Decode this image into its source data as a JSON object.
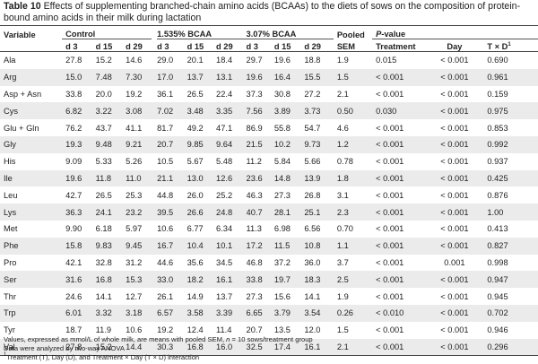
{
  "caption": {
    "label": "Table 10",
    "text": "Effects of supplementing branched-chain amino acids (BCAAs) to the diets of sows on the composition of protein-bound amino acids in their milk during lactation"
  },
  "header": {
    "variable": "Variable",
    "groups": [
      "Control",
      "1.535% BCAA",
      "3.07% BCAA"
    ],
    "pooled_line1": "Pooled",
    "pooled_line2": "SEM",
    "pvalue_p": "P",
    "pvalue_rest": "-value",
    "days": [
      "d 3",
      "d 15",
      "d 29"
    ],
    "treatment": "Treatment",
    "day": "Day",
    "interaction": "T × D",
    "interaction_sup": "1"
  },
  "rows": [
    {
      "variable": "Ala",
      "c": [
        "27.8",
        "15.2",
        "14.6"
      ],
      "b1": [
        "29.0",
        "20.1",
        "18.4"
      ],
      "b2": [
        "29.7",
        "19.6",
        "18.8"
      ],
      "sem": "1.9",
      "treatment": "0.015",
      "day": "< 0.001",
      "txd": "0.690"
    },
    {
      "variable": "Arg",
      "c": [
        "15.0",
        "7.48",
        "7.30"
      ],
      "b1": [
        "17.0",
        "13.7",
        "13.1"
      ],
      "b2": [
        "19.6",
        "16.4",
        "15.5"
      ],
      "sem": "1.5",
      "treatment": "< 0.001",
      "day": "< 0.001",
      "txd": "0.961"
    },
    {
      "variable": "Asp + Asn",
      "c": [
        "33.8",
        "20.0",
        "19.2"
      ],
      "b1": [
        "36.1",
        "26.5",
        "22.4"
      ],
      "b2": [
        "37.3",
        "30.8",
        "27.2"
      ],
      "sem": "2.1",
      "treatment": "< 0.001",
      "day": "< 0.001",
      "txd": "0.159"
    },
    {
      "variable": "Cys",
      "c": [
        "6.82",
        "3.22",
        "3.08"
      ],
      "b1": [
        "7.02",
        "3.48",
        "3.35"
      ],
      "b2": [
        "7.56",
        "3.89",
        "3.73"
      ],
      "sem": "0.50",
      "treatment": "0.030",
      "day": "< 0.001",
      "txd": "0.975"
    },
    {
      "variable": "Glu + Gln",
      "c": [
        "76.2",
        "43.7",
        "41.1"
      ],
      "b1": [
        "81.7",
        "49.2",
        "47.1"
      ],
      "b2": [
        "86.9",
        "55.8",
        "54.7"
      ],
      "sem": "4.6",
      "treatment": "< 0.001",
      "day": "< 0.001",
      "txd": "0.853"
    },
    {
      "variable": "Gly",
      "c": [
        "19.3",
        "9.48",
        "9.21"
      ],
      "b1": [
        "20.7",
        "9.85",
        "9.64"
      ],
      "b2": [
        "21.5",
        "10.2",
        "9.73"
      ],
      "sem": "1.2",
      "treatment": "< 0.001",
      "day": "< 0.001",
      "txd": "0.992"
    },
    {
      "variable": "His",
      "c": [
        "9.09",
        "5.33",
        "5.26"
      ],
      "b1": [
        "10.5",
        "5.67",
        "5.48"
      ],
      "b2": [
        "11.2",
        "5.84",
        "5.66"
      ],
      "sem": "0.78",
      "treatment": "< 0.001",
      "day": "< 0.001",
      "txd": "0.937"
    },
    {
      "variable": "Ile",
      "c": [
        "19.6",
        "11.8",
        "11.0"
      ],
      "b1": [
        "21.1",
        "13.0",
        "12.6"
      ],
      "b2": [
        "23.6",
        "14.8",
        "13.9"
      ],
      "sem": "1.8",
      "treatment": "< 0.001",
      "day": "< 0.001",
      "txd": "0.425"
    },
    {
      "variable": "Leu",
      "c": [
        "42.7",
        "26.5",
        "25.3"
      ],
      "b1": [
        "44.8",
        "26.0",
        "25.2"
      ],
      "b2": [
        "46.3",
        "27.3",
        "26.8"
      ],
      "sem": "3.1",
      "treatment": "< 0.001",
      "day": "< 0.001",
      "txd": "0.876"
    },
    {
      "variable": "Lys",
      "c": [
        "36.3",
        "24.1",
        "23.2"
      ],
      "b1": [
        "39.5",
        "26.6",
        "24.8"
      ],
      "b2": [
        "40.7",
        "28.1",
        "25.1"
      ],
      "sem": "2.3",
      "treatment": "< 0.001",
      "day": "< 0.001",
      "txd": "1.00"
    },
    {
      "variable": "Met",
      "c": [
        "9.90",
        "6.18",
        "5.97"
      ],
      "b1": [
        "10.6",
        "6.77",
        "6.34"
      ],
      "b2": [
        "11.3",
        "6.98",
        "6.56"
      ],
      "sem": "0.70",
      "treatment": "< 0.001",
      "day": "< 0.001",
      "txd": "0.413"
    },
    {
      "variable": "Phe",
      "c": [
        "15.8",
        "9.83",
        "9.45"
      ],
      "b1": [
        "16.7",
        "10.4",
        "10.1"
      ],
      "b2": [
        "17.2",
        "11.5",
        "10.8"
      ],
      "sem": "1.1",
      "treatment": "< 0.001",
      "day": "< 0.001",
      "txd": "0.827"
    },
    {
      "variable": "Pro",
      "c": [
        "42.1",
        "32.8",
        "31.2"
      ],
      "b1": [
        "44.6",
        "35.6",
        "34.5"
      ],
      "b2": [
        "46.8",
        "37.2",
        "36.0"
      ],
      "sem": "3.7",
      "treatment": "< 0.001",
      "day": "0.001",
      "txd": "0.998"
    },
    {
      "variable": "Ser",
      "c": [
        "31.6",
        "16.8",
        "15.3"
      ],
      "b1": [
        "33.0",
        "18.2",
        "16.1"
      ],
      "b2": [
        "33.8",
        "19.7",
        "18.3"
      ],
      "sem": "2.5",
      "treatment": "< 0.001",
      "day": "< 0.001",
      "txd": "0.947"
    },
    {
      "variable": "Thr",
      "c": [
        "24.6",
        "14.1",
        "12.7"
      ],
      "b1": [
        "26.1",
        "14.9",
        "13.7"
      ],
      "b2": [
        "27.3",
        "15.6",
        "14.1"
      ],
      "sem": "1.9",
      "treatment": "< 0.001",
      "day": "< 0.001",
      "txd": "0.945"
    },
    {
      "variable": "Trp",
      "c": [
        "6.01",
        "3.32",
        "3.18"
      ],
      "b1": [
        "6.57",
        "3.58",
        "3.39"
      ],
      "b2": [
        "6.65",
        "3.79",
        "3.54"
      ],
      "sem": "0.26",
      "treatment": "< 0.010",
      "day": "< 0.001",
      "txd": "0.702"
    },
    {
      "variable": "Tyr",
      "c": [
        "18.7",
        "11.9",
        "10.6"
      ],
      "b1": [
        "19.2",
        "12.4",
        "11.4"
      ],
      "b2": [
        "20.7",
        "13.5",
        "12.0"
      ],
      "sem": "1.5",
      "treatment": "< 0.001",
      "day": "< 0.001",
      "txd": "0.946"
    },
    {
      "variable": "Val",
      "c": [
        "27.8",
        "15.2",
        "14.4"
      ],
      "b1": [
        "30.3",
        "16.8",
        "16.0"
      ],
      "b2": [
        "32.5",
        "17.4",
        "16.1"
      ],
      "sem": "2.1",
      "treatment": "< 0.001",
      "day": "< 0.001",
      "txd": "0.296"
    }
  ],
  "footnotes": {
    "line1_a": "Values, expressed as mmol/L of whole milk, are means with pooled SEM, ",
    "line1_n": "n",
    "line1_b": " = 10 sows/treatment group",
    "line2": "Data were analyzed by two-way ANOVA",
    "line3_sup": "1",
    "line3": "Treatment (T), Day (D), and Treatment × Day (T × D) interaction"
  },
  "colors": {
    "stripe": "#ebebeb",
    "text": "#222222"
  }
}
